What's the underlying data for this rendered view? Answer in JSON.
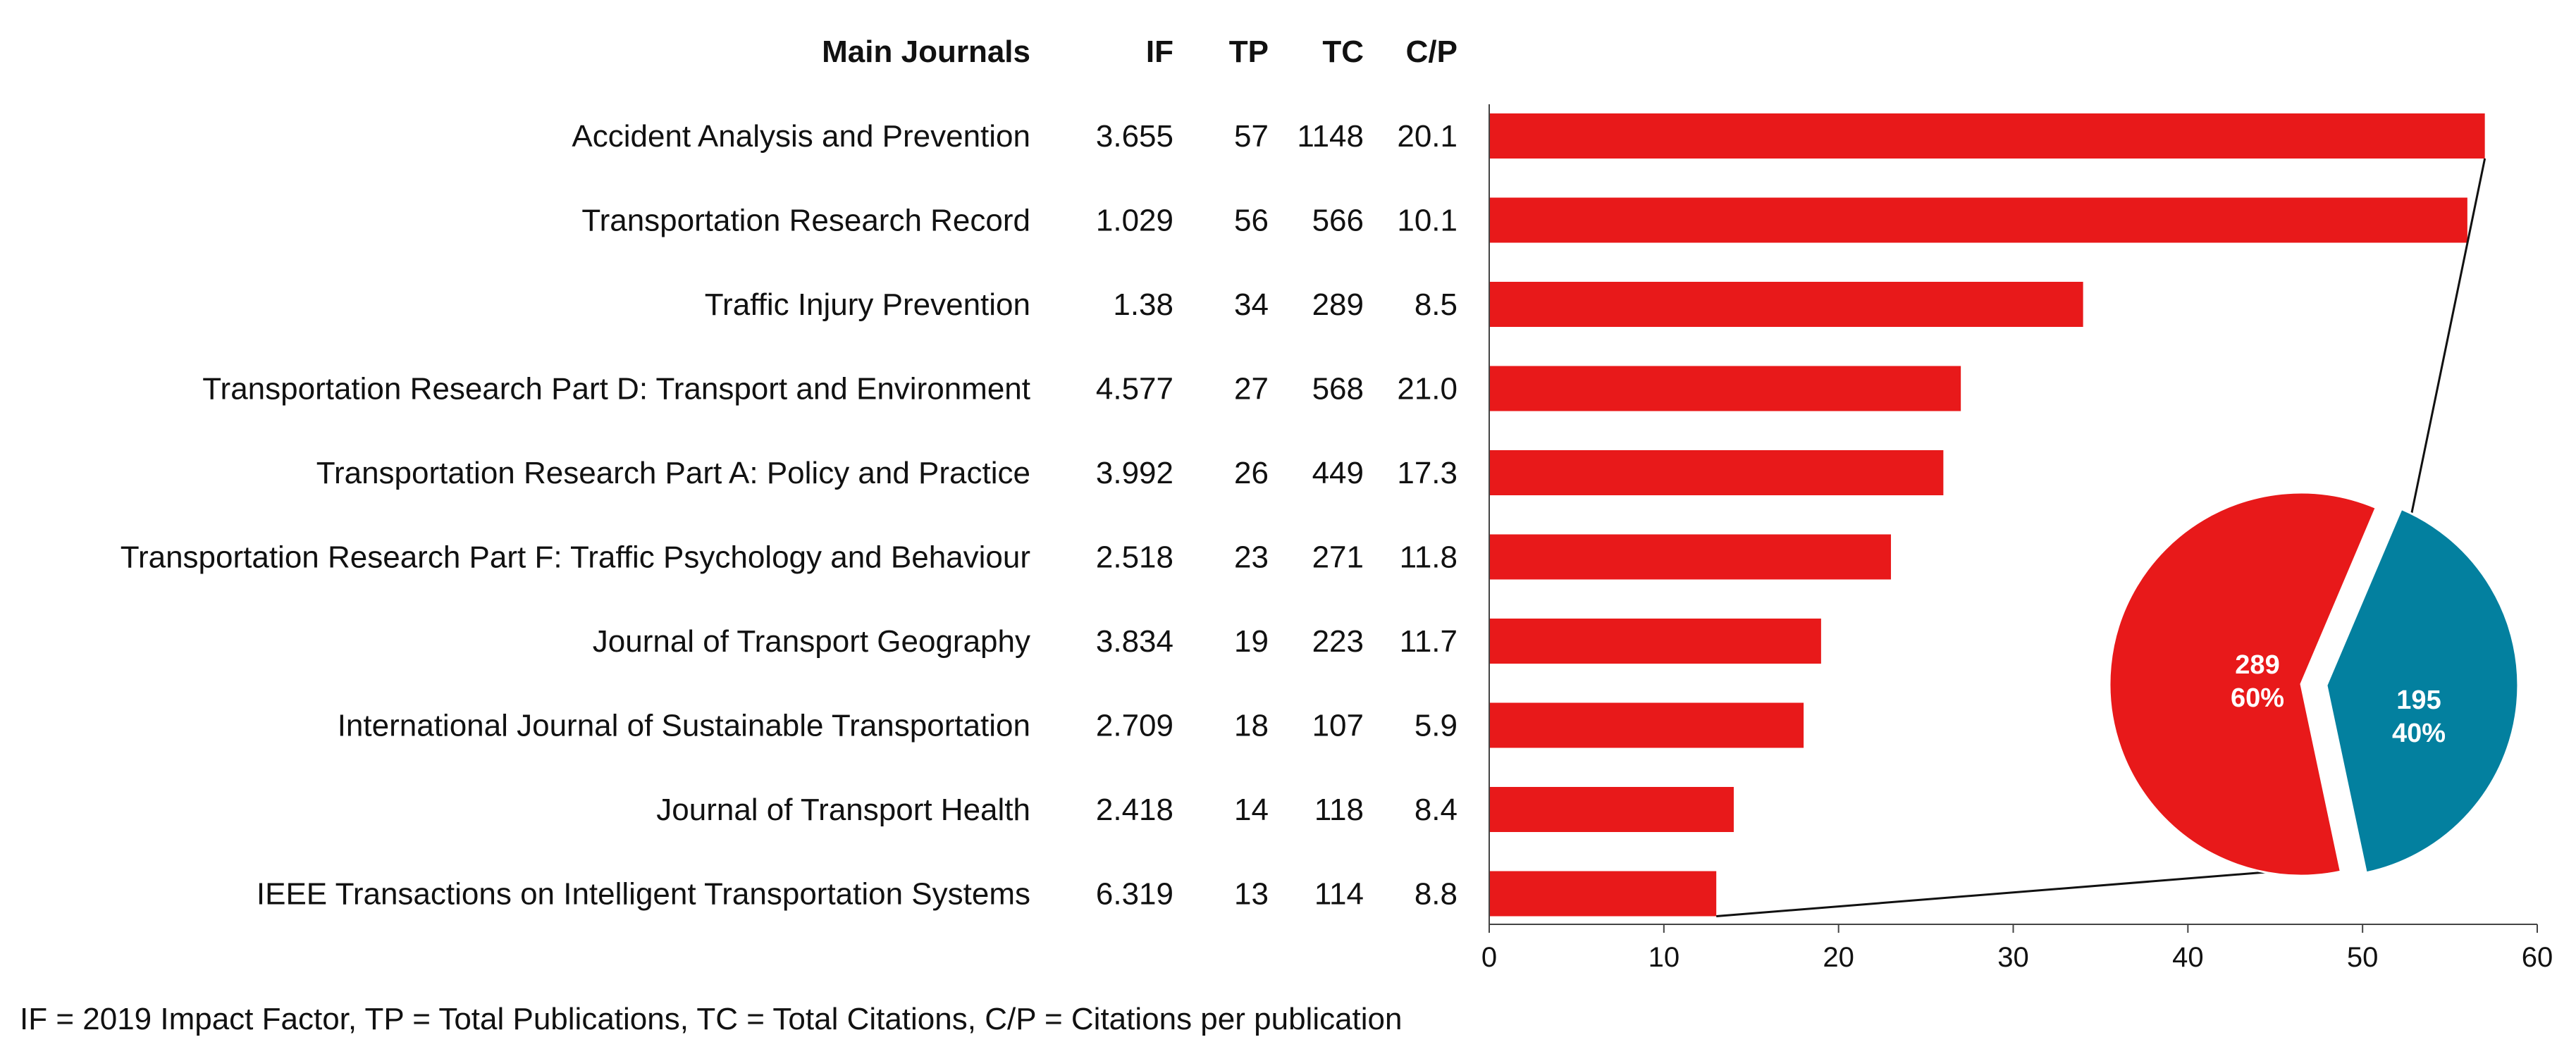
{
  "table": {
    "headers": {
      "journal": "Main Journals",
      "if": "IF",
      "tp": "TP",
      "tc": "TC",
      "cp": "C/P"
    },
    "rows": [
      {
        "journal": "Accident Analysis and Prevention",
        "if": "3.655",
        "tp": "57",
        "tc": "1148",
        "cp": "20.1"
      },
      {
        "journal": "Transportation Research Record",
        "if": "1.029",
        "tp": "56",
        "tc": "566",
        "cp": "10.1"
      },
      {
        "journal": "Traffic Injury Prevention",
        "if": "1.38",
        "tp": "34",
        "tc": "289",
        "cp": "8.5"
      },
      {
        "journal": "Transportation Research Part D: Transport and Environment",
        "if": "4.577",
        "tp": "27",
        "tc": "568",
        "cp": "21.0"
      },
      {
        "journal": "Transportation Research Part A: Policy and Practice",
        "if": "3.992",
        "tp": "26",
        "tc": "449",
        "cp": "17.3"
      },
      {
        "journal": "Transportation Research Part F:  Traffic Psychology and Behaviour",
        "if": "2.518",
        "tp": "23",
        "tc": "271",
        "cp": "11.8"
      },
      {
        "journal": "Journal of Transport Geography",
        "if": "3.834",
        "tp": "19",
        "tc": "223",
        "cp": "11.7"
      },
      {
        "journal": "International Journal of Sustainable Transportation",
        "if": "2.709",
        "tp": "18",
        "tc": "107",
        "cp": "5.9"
      },
      {
        "journal": "Journal of Transport Health",
        "if": "2.418",
        "tp": "14",
        "tc": "118",
        "cp": "8.4"
      },
      {
        "journal": "IEEE Transactions on Intelligent Transportation Systems",
        "if": "6.319",
        "tp": "13",
        "tc": "114",
        "cp": "8.8"
      }
    ]
  },
  "chart_data": [
    {
      "type": "bar",
      "orientation": "horizontal",
      "categories": [
        "Accident Analysis and Prevention",
        "Transportation Research Record",
        "Traffic Injury Prevention",
        "Transportation Research Part D: Transport and Environment",
        "Transportation Research Part A: Policy and Practice",
        "Transportation Research Part F:  Traffic Psychology and Behaviour",
        "Journal of Transport Geography",
        "International Journal of Sustainable Transportation",
        "Journal of Transport Health",
        "IEEE Transactions on Intelligent Transportation Systems"
      ],
      "values": [
        57,
        56,
        34,
        27,
        26,
        23,
        19,
        18,
        14,
        13
      ],
      "xlim": [
        0,
        60
      ],
      "xticks": [
        0,
        10,
        20,
        30,
        40,
        50,
        60
      ],
      "bar_color": "#E8191A",
      "grid": false
    },
    {
      "type": "pie",
      "slices": [
        {
          "value": 289,
          "percent": 60,
          "label_value": "289",
          "label_percent": "60%",
          "color": "#E8191A",
          "exploded": false
        },
        {
          "value": 195,
          "percent": 40,
          "label_value": "195",
          "label_percent": "40%",
          "color": "#03809F",
          "exploded": true
        }
      ]
    }
  ],
  "footnote": "IF = 2019 Impact Factor, TP = Total Publications, TC = Total Citations, C/P = Citations per publication"
}
